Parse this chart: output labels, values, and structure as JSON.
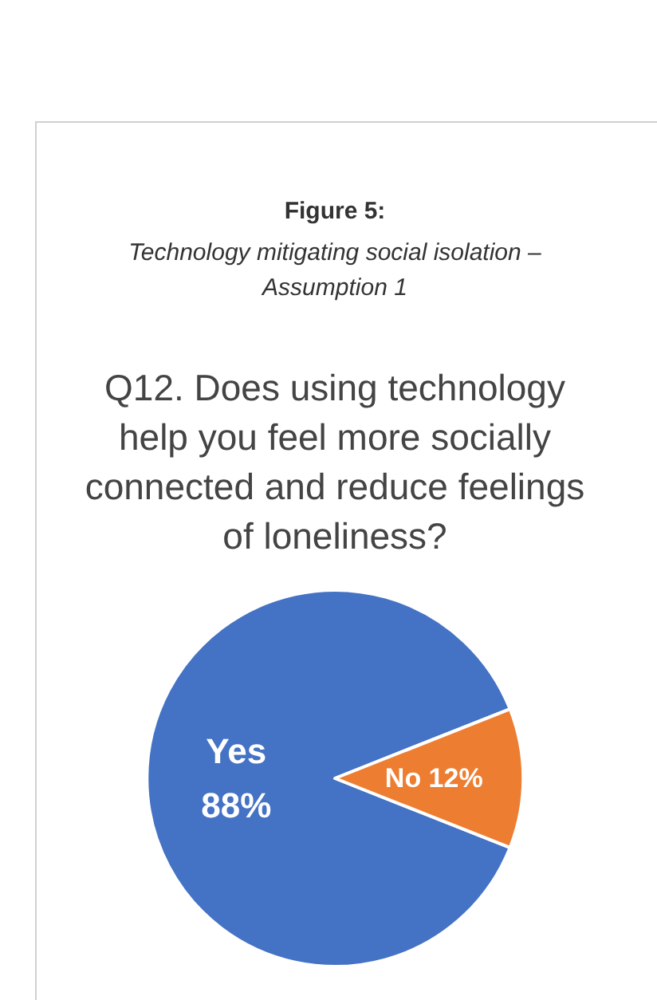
{
  "chart_data": {
    "type": "pie",
    "title": "Figure 5:",
    "subtitle": "Technology mitigating social isolation – Assumption 1",
    "annotations": [
      "Q12.  Does using technology help you feel more socially connected and reduce feelings of loneliness?"
    ],
    "categories": [
      "Yes",
      "No"
    ],
    "values": [
      88,
      12
    ],
    "value_labels": [
      "88%",
      "12%"
    ],
    "colors": [
      "#4472c4",
      "#ed7d31"
    ],
    "legend": false
  }
}
